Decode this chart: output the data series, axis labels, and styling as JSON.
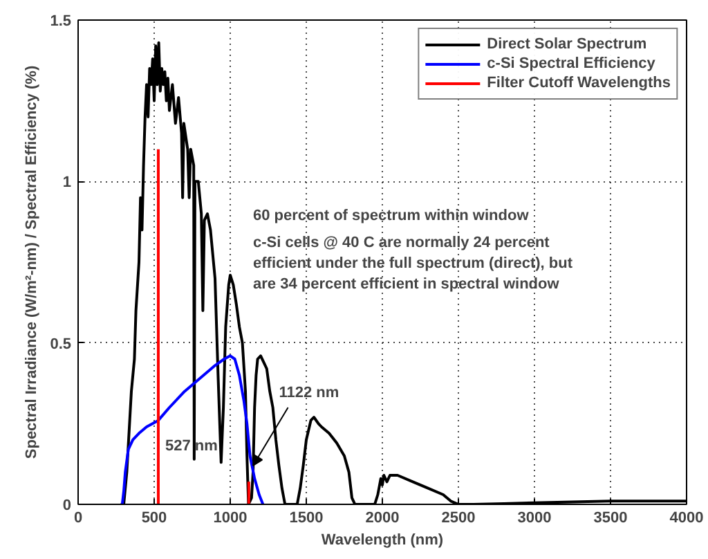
{
  "chart_data": {
    "type": "line",
    "xlabel": "Wavelength (nm)",
    "ylabel": "Spectral Irradiance (W/m²-nm) / Spectral Efficiency (%)",
    "xlim": [
      0,
      4000
    ],
    "xticks": [
      0,
      500,
      1000,
      1500,
      2000,
      2500,
      3000,
      3500,
      4000
    ],
    "ylim": [
      0,
      1.5
    ],
    "yticks": [
      0,
      0.5,
      1,
      1.5
    ],
    "grid": true,
    "legend": "top right",
    "line_style": "solid",
    "series": [
      {
        "name": "Direct Solar Spectrum",
        "color": "#000000",
        "x": [
          280,
          300,
          320,
          350,
          370,
          380,
          400,
          410,
          420,
          430,
          440,
          450,
          460,
          470,
          480,
          490,
          500,
          510,
          520,
          530,
          540,
          550,
          560,
          570,
          580,
          590,
          600,
          620,
          640,
          660,
          680,
          687,
          695,
          720,
          730,
          740,
          760,
          763,
          768,
          790,
          810,
          820,
          830,
          850,
          870,
          900,
          920,
          940,
          955,
          970,
          990,
          1000,
          1020,
          1040,
          1060,
          1080,
          1100,
          1110,
          1120,
          1140,
          1150,
          1160,
          1170,
          1180,
          1200,
          1220,
          1240,
          1260,
          1280,
          1300,
          1320,
          1340,
          1360,
          1400,
          1440,
          1460,
          1480,
          1500,
          1530,
          1550,
          1580,
          1600,
          1650,
          1700,
          1750,
          1780,
          1800,
          1820,
          1950,
          1970,
          1990,
          2000,
          2010,
          2030,
          2050,
          2100,
          2200,
          2300,
          2400,
          2450,
          2500,
          2600,
          2800,
          3000,
          3200,
          3500,
          3800,
          4000
        ],
        "values": [
          0,
          0,
          0.1,
          0.35,
          0.45,
          0.6,
          0.75,
          0.95,
          0.85,
          1.05,
          1.2,
          1.3,
          1.2,
          1.35,
          1.3,
          1.38,
          1.25,
          1.42,
          1.3,
          1.43,
          1.28,
          1.35,
          1.3,
          1.34,
          1.25,
          1.32,
          1.22,
          1.3,
          1.18,
          1.26,
          1.15,
          0.95,
          1.18,
          1.1,
          0.95,
          1.1,
          1.05,
          0.14,
          1.0,
          1.0,
          0.9,
          0.6,
          0.88,
          0.9,
          0.85,
          0.7,
          0.4,
          0.13,
          0.3,
          0.55,
          0.68,
          0.71,
          0.68,
          0.62,
          0.55,
          0.5,
          0.35,
          0.15,
          0,
          0.02,
          0.1,
          0.3,
          0.4,
          0.45,
          0.46,
          0.44,
          0.42,
          0.35,
          0.3,
          0.2,
          0.12,
          0.05,
          0,
          0,
          0,
          0.05,
          0.12,
          0.2,
          0.26,
          0.27,
          0.25,
          0.24,
          0.22,
          0.19,
          0.15,
          0.1,
          0.02,
          0,
          0,
          0.03,
          0.08,
          0.06,
          0.09,
          0.07,
          0.09,
          0.09,
          0.07,
          0.05,
          0.03,
          0.01,
          0,
          0,
          0.002,
          0.005,
          0.007,
          0.01,
          0.01,
          0.01
        ]
      },
      {
        "name": "c-Si Spectral Efficiency",
        "color": "#0000ff",
        "x": [
          290,
          300,
          310,
          330,
          360,
          400,
          450,
          527,
          600,
          700,
          800,
          900,
          960,
          1000,
          1030,
          1060,
          1090,
          1110,
          1130,
          1160,
          1190,
          1215
        ],
        "values": [
          0,
          0.04,
          0.1,
          0.17,
          0.2,
          0.22,
          0.24,
          0.26,
          0.3,
          0.35,
          0.39,
          0.43,
          0.45,
          0.46,
          0.45,
          0.4,
          0.32,
          0.25,
          0.15,
          0.08,
          0.03,
          0
        ]
      },
      {
        "name": "Filter Cutoff Wavelengths",
        "color": "#ff0000",
        "x": [
          527,
          527,
          null,
          1122,
          1122
        ],
        "values": [
          0,
          1.1,
          null,
          0,
          0.07
        ]
      }
    ],
    "annotations": [
      {
        "text": "527 nm",
        "x": 527,
        "y": 0.18
      },
      {
        "text": "1122 nm",
        "x": 1150,
        "y": 0.12
      },
      "60 percent of spectrum within window",
      "c-Si cells @ 40 C are normally 24 percent\nefficient under the full spectrum (direct), but\nare 34 percent efficient in spectral window"
    ]
  }
}
